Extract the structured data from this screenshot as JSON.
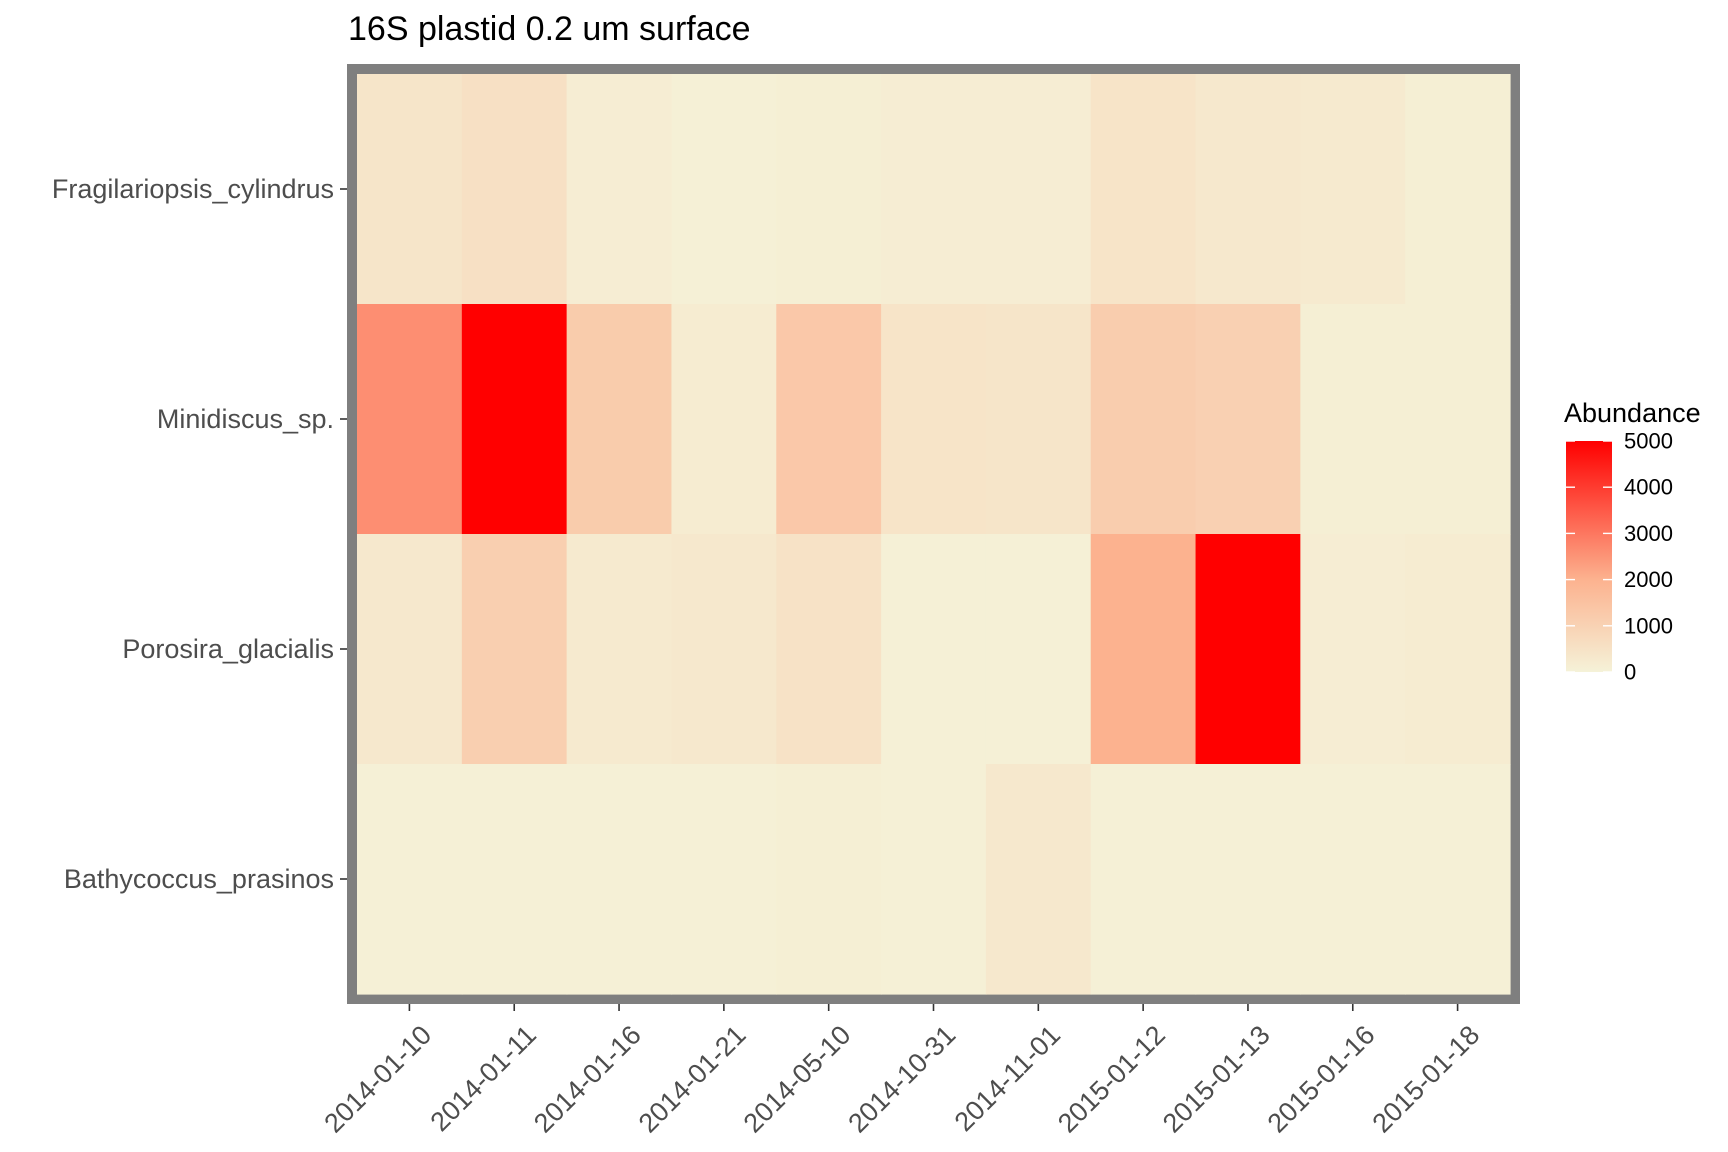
{
  "chart_data": {
    "type": "heatmap",
    "title": "16S plastid 0.2 um surface",
    "x": [
      "2014-01-10",
      "2014-01-11",
      "2014-01-16",
      "2014-01-21",
      "2014-05-10",
      "2014-10-31",
      "2014-11-01",
      "2015-01-12",
      "2015-01-13",
      "2015-01-16",
      "2015-01-18"
    ],
    "y": [
      "Fragilariopsis_cylindrus",
      "Minidiscus_sp.",
      "Porosira_glacialis",
      "Bathycoccus_prasinos"
    ],
    "values": [
      [
        400,
        550,
        150,
        50,
        100,
        150,
        150,
        450,
        300,
        250,
        100
      ],
      [
        2600,
        5000,
        1200,
        200,
        1300,
        450,
        400,
        1150,
        1050,
        100,
        100
      ],
      [
        300,
        1100,
        250,
        300,
        500,
        50,
        50,
        2000,
        5000,
        150,
        200
      ],
      [
        50,
        50,
        50,
        50,
        100,
        50,
        300,
        50,
        50,
        50,
        50
      ]
    ],
    "legend": {
      "title": "Abundance",
      "ticks": [
        0,
        1000,
        2000,
        3000,
        4000,
        5000
      ],
      "range": [
        0,
        5000
      ],
      "low_color": "#f5f2d8",
      "high_color": "#ff0000",
      "placement": "right"
    },
    "panel_border_color": "#7f7f7f"
  }
}
